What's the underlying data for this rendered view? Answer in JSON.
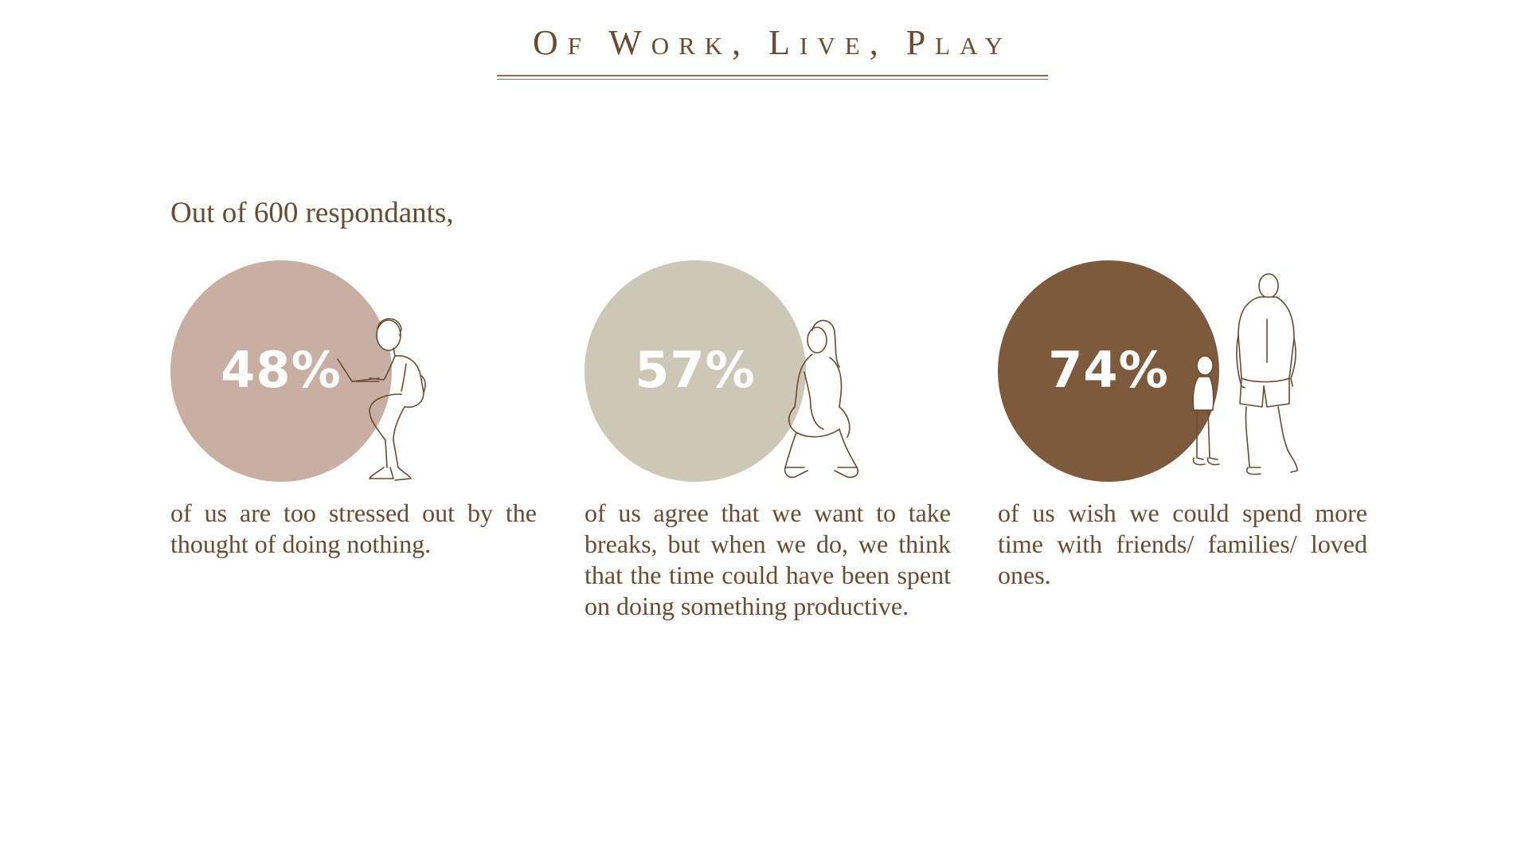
{
  "header": {
    "title": "Of Work, Live, Play"
  },
  "intro": {
    "text": "Out of 600 respondants,"
  },
  "stats": [
    {
      "percent": "48%",
      "value": 48,
      "color": "#c9aea2",
      "description": "of us are too stressed out by the thought of doing nothing.",
      "illustration": "person-with-laptop-icon"
    },
    {
      "percent": "57%",
      "value": 57,
      "color": "#cdc8b6",
      "description": "of us agree that we want to take breaks, but when we do, we think that the time could have been spent on doing something productive.",
      "illustration": "seated-woman-icon"
    },
    {
      "percent": "74%",
      "value": 74,
      "color": "#7e5a3c",
      "description": "of us wish we could spend more time with friends/ families/ loved ones.",
      "illustration": "parent-and-child-icon"
    }
  ]
}
